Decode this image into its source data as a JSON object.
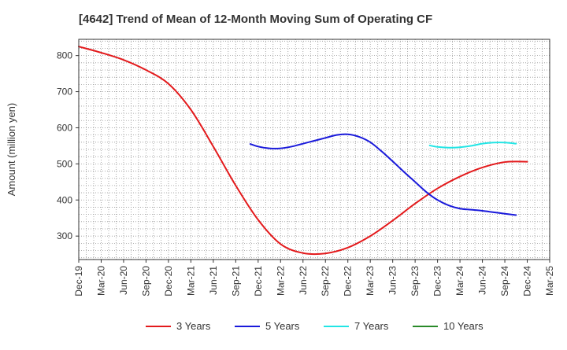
{
  "chart_data": {
    "type": "line",
    "title": "[4642]  Trend of Mean of 12-Month Moving Sum of Operating CF",
    "xlabel": "",
    "ylabel": "Amount (million yen)",
    "ylim": [
      235,
      845
    ],
    "yticks": [
      300,
      400,
      500,
      600,
      700,
      800
    ],
    "x_tick_labels": [
      "Dec-19",
      "Mar-20",
      "Jun-20",
      "Sep-20",
      "Dec-20",
      "Mar-21",
      "Jun-21",
      "Sep-21",
      "Dec-21",
      "Mar-22",
      "Jun-22",
      "Sep-22",
      "Dec-22",
      "Mar-23",
      "Jun-23",
      "Sep-23",
      "Dec-23",
      "Mar-24",
      "Jun-24",
      "Sep-24",
      "Dec-24",
      "Mar-25"
    ],
    "grid": true,
    "legend_position": "bottom",
    "series": [
      {
        "name": "3 Years",
        "color": "#e31a1c",
        "points": [
          [
            0,
            825
          ],
          [
            1,
            808
          ],
          [
            2,
            788
          ],
          [
            3,
            760
          ],
          [
            4,
            722
          ],
          [
            5,
            650
          ],
          [
            6,
            548
          ],
          [
            7,
            440
          ],
          [
            8,
            345
          ],
          [
            9,
            278
          ],
          [
            10,
            253
          ],
          [
            11,
            252
          ],
          [
            12,
            268
          ],
          [
            13,
            300
          ],
          [
            14,
            343
          ],
          [
            15,
            390
          ],
          [
            16,
            432
          ],
          [
            17,
            465
          ],
          [
            18,
            490
          ],
          [
            19,
            505
          ],
          [
            20,
            506
          ]
        ]
      },
      {
        "name": "5 Years",
        "color": "#1a1adb",
        "points": [
          [
            7.65,
            555
          ],
          [
            8,
            548
          ],
          [
            8.5,
            543
          ],
          [
            9,
            543
          ],
          [
            9.5,
            548
          ],
          [
            10,
            556
          ],
          [
            10.5,
            564
          ],
          [
            11,
            572
          ],
          [
            11.5,
            580
          ],
          [
            12,
            582
          ],
          [
            12.5,
            575
          ],
          [
            13,
            560
          ],
          [
            13.5,
            535
          ],
          [
            14,
            507
          ],
          [
            14.5,
            478
          ],
          [
            15,
            450
          ],
          [
            15.5,
            422
          ],
          [
            16,
            400
          ],
          [
            16.5,
            385
          ],
          [
            17,
            376
          ],
          [
            17.5,
            373
          ],
          [
            18,
            370
          ],
          [
            18.5,
            366
          ],
          [
            19,
            362
          ],
          [
            19.5,
            358
          ]
        ]
      },
      {
        "name": "7 Years",
        "color": "#22e5e5",
        "points": [
          [
            15.65,
            551
          ],
          [
            16,
            547
          ],
          [
            16.5,
            545
          ],
          [
            17,
            546
          ],
          [
            17.5,
            550
          ],
          [
            18,
            556
          ],
          [
            18.5,
            559
          ],
          [
            19,
            559
          ],
          [
            19.5,
            556
          ]
        ]
      },
      {
        "name": "10 Years",
        "color": "#2a8a2a",
        "points": []
      }
    ]
  }
}
